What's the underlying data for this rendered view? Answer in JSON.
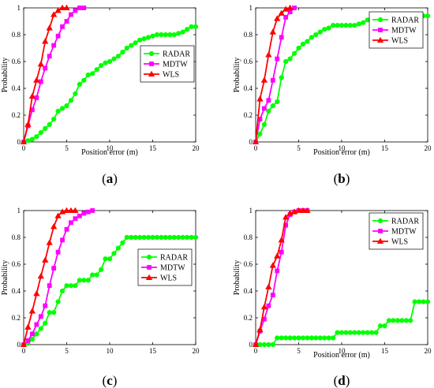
{
  "chart_data": [
    {
      "type": "line",
      "panel_label": "a",
      "xlabel": "Position error (m)",
      "ylabel": "Probability",
      "xlim": [
        0,
        20
      ],
      "ylim": [
        0,
        1
      ],
      "xticks": [
        0,
        5,
        10,
        15,
        20
      ],
      "yticks": [
        0,
        0.2,
        0.4,
        0.6,
        0.8,
        1
      ],
      "legend_position": "right",
      "series": [
        {
          "name": "RADAR",
          "color": "#00ff00",
          "marker": "circle",
          "x": [
            0,
            0.5,
            1,
            1.5,
            2,
            2.5,
            3,
            3.5,
            4,
            4.5,
            5,
            5.5,
            6,
            6.5,
            7,
            7.5,
            8,
            8.5,
            9,
            9.5,
            10,
            10.5,
            11,
            11.5,
            12,
            12.5,
            13,
            13.5,
            14,
            14.5,
            15,
            15.5,
            16,
            16.5,
            17,
            17.5,
            18,
            18.5,
            19,
            19.5,
            20
          ],
          "y": [
            0,
            0.01,
            0.02,
            0.04,
            0.07,
            0.1,
            0.13,
            0.17,
            0.23,
            0.25,
            0.27,
            0.31,
            0.36,
            0.43,
            0.46,
            0.5,
            0.51,
            0.54,
            0.57,
            0.59,
            0.6,
            0.62,
            0.64,
            0.67,
            0.7,
            0.72,
            0.74,
            0.76,
            0.77,
            0.78,
            0.79,
            0.8,
            0.8,
            0.8,
            0.8,
            0.8,
            0.81,
            0.82,
            0.84,
            0.86,
            0.86
          ]
        },
        {
          "name": "MDTW",
          "color": "#ff00ff",
          "marker": "square",
          "x": [
            0,
            0.5,
            1,
            1.5,
            2,
            2.5,
            3,
            3.5,
            4,
            4.5,
            5,
            5.5,
            6,
            6.5,
            7
          ],
          "y": [
            0,
            0.12,
            0.24,
            0.33,
            0.45,
            0.55,
            0.64,
            0.72,
            0.79,
            0.86,
            0.9,
            0.95,
            0.98,
            1.0,
            1.0
          ]
        },
        {
          "name": "WLS",
          "color": "#ff0000",
          "marker": "triangle",
          "x": [
            0,
            0.5,
            1,
            1.5,
            2,
            2.5,
            3,
            3.5,
            4,
            4.5,
            5
          ],
          "y": [
            0,
            0.13,
            0.34,
            0.46,
            0.58,
            0.75,
            0.85,
            0.95,
            0.98,
            1.0,
            1.0
          ]
        }
      ]
    },
    {
      "type": "line",
      "panel_label": "b",
      "xlabel": "Position error (m)",
      "ylabel": "Probability",
      "xlim": [
        0,
        20
      ],
      "ylim": [
        0,
        1
      ],
      "xticks": [
        0,
        5,
        10,
        15,
        20
      ],
      "yticks": [
        0,
        0.2,
        0.4,
        0.6,
        0.8,
        1
      ],
      "legend_position": "top-right",
      "series": [
        {
          "name": "RADAR",
          "color": "#00ff00",
          "marker": "circle",
          "x": [
            0,
            0.5,
            1,
            1.5,
            2,
            2.5,
            3,
            3.5,
            4,
            4.5,
            5,
            5.5,
            6,
            6.5,
            7,
            7.5,
            8,
            8.5,
            9,
            9.5,
            10,
            10.5,
            11,
            11.5,
            12,
            12.5,
            13,
            13.5,
            14,
            14.5,
            15,
            15.5,
            16,
            16.5,
            17,
            17.5,
            18,
            18.5,
            19,
            19.5,
            20
          ],
          "y": [
            0,
            0.06,
            0.13,
            0.23,
            0.27,
            0.3,
            0.48,
            0.6,
            0.62,
            0.66,
            0.7,
            0.73,
            0.75,
            0.78,
            0.8,
            0.82,
            0.84,
            0.85,
            0.87,
            0.87,
            0.87,
            0.87,
            0.87,
            0.87,
            0.88,
            0.89,
            0.91,
            0.93,
            0.93,
            0.93,
            0.93,
            0.93,
            0.93,
            0.94,
            0.94,
            0.94,
            0.94,
            0.94,
            0.94,
            0.94,
            0.94
          ]
        },
        {
          "name": "MDTW",
          "color": "#ff00ff",
          "marker": "square",
          "x": [
            0,
            0.5,
            1,
            1.5,
            2,
            2.5,
            3,
            3.5,
            4,
            4.5
          ],
          "y": [
            0,
            0.17,
            0.25,
            0.31,
            0.46,
            0.62,
            0.78,
            0.93,
            0.97,
            1.0
          ]
        },
        {
          "name": "WLS",
          "color": "#ff0000",
          "marker": "triangle",
          "x": [
            0,
            0.5,
            1,
            1.5,
            2,
            2.5,
            3,
            3.5,
            4
          ],
          "y": [
            0,
            0.32,
            0.46,
            0.65,
            0.82,
            0.92,
            0.96,
            0.99,
            1.0
          ]
        }
      ]
    },
    {
      "type": "line",
      "panel_label": "c",
      "xlabel": "",
      "ylabel": "Probability",
      "xlim": [
        0,
        20
      ],
      "ylim": [
        0,
        1
      ],
      "xticks": [
        0,
        5,
        10,
        15,
        20
      ],
      "yticks": [
        0,
        0.2,
        0.4,
        0.6,
        0.8,
        1
      ],
      "legend_position": "right",
      "series": [
        {
          "name": "RADAR",
          "color": "#00ff00",
          "marker": "circle",
          "x": [
            0,
            0.5,
            1,
            1.5,
            2,
            2.5,
            3,
            3.5,
            4,
            4.5,
            5,
            5.5,
            6,
            6.5,
            7,
            7.5,
            8,
            8.5,
            9,
            9.5,
            10,
            10.5,
            11,
            11.5,
            12,
            12.5,
            13,
            13.5,
            14,
            14.5,
            15,
            15.5,
            16,
            16.5,
            17,
            17.5,
            18,
            18.5,
            19,
            19.5,
            20
          ],
          "y": [
            0,
            0.01,
            0.04,
            0.08,
            0.12,
            0.16,
            0.24,
            0.24,
            0.32,
            0.4,
            0.44,
            0.44,
            0.44,
            0.48,
            0.48,
            0.48,
            0.52,
            0.52,
            0.56,
            0.64,
            0.64,
            0.68,
            0.72,
            0.76,
            0.8,
            0.8,
            0.8,
            0.8,
            0.8,
            0.8,
            0.8,
            0.8,
            0.8,
            0.8,
            0.8,
            0.8,
            0.8,
            0.8,
            0.8,
            0.8,
            0.8
          ]
        },
        {
          "name": "MDTW",
          "color": "#ff00ff",
          "marker": "square",
          "x": [
            0,
            0.5,
            1,
            1.5,
            2,
            2.5,
            3,
            3.5,
            4,
            4.5,
            5,
            5.5,
            6,
            6.5,
            7,
            7.5,
            8
          ],
          "y": [
            0,
            0.03,
            0.08,
            0.15,
            0.21,
            0.29,
            0.44,
            0.57,
            0.69,
            0.78,
            0.86,
            0.91,
            0.94,
            0.96,
            0.98,
            0.99,
            1.0
          ]
        },
        {
          "name": "WLS",
          "color": "#ff0000",
          "marker": "triangle",
          "x": [
            0,
            0.5,
            1,
            1.5,
            2,
            2.5,
            3,
            3.5,
            4,
            4.5,
            5,
            5.5,
            6
          ],
          "y": [
            0,
            0.13,
            0.25,
            0.38,
            0.51,
            0.63,
            0.76,
            0.88,
            0.96,
            0.99,
            1.0,
            1.0,
            1.0
          ]
        }
      ]
    },
    {
      "type": "line",
      "panel_label": "d",
      "xlabel": "Position error (m)",
      "ylabel": "Probability",
      "xlim": [
        0,
        20
      ],
      "ylim": [
        0,
        1
      ],
      "xticks": [
        0,
        5,
        10,
        15,
        20
      ],
      "yticks": [
        0,
        0.2,
        0.4,
        0.6,
        0.8,
        1
      ],
      "legend_position": "top-right",
      "series": [
        {
          "name": "RADAR",
          "color": "#00ff00",
          "marker": "circle",
          "x": [
            0,
            0.5,
            1,
            1.5,
            2,
            2.5,
            3,
            3.5,
            4,
            4.5,
            5,
            5.5,
            6,
            6.5,
            7,
            7.5,
            8,
            8.5,
            9,
            9.5,
            10,
            10.5,
            11,
            11.5,
            12,
            12.5,
            13,
            13.5,
            14,
            14.5,
            15,
            15.5,
            16,
            16.5,
            17,
            17.5,
            18,
            18.5,
            19,
            19.5,
            20
          ],
          "y": [
            0,
            0,
            0,
            0,
            0,
            0.05,
            0.05,
            0.05,
            0.05,
            0.05,
            0.05,
            0.05,
            0.05,
            0.05,
            0.05,
            0.05,
            0.05,
            0.05,
            0.05,
            0.09,
            0.09,
            0.09,
            0.09,
            0.09,
            0.09,
            0.09,
            0.09,
            0.09,
            0.09,
            0.14,
            0.14,
            0.18,
            0.18,
            0.18,
            0.18,
            0.18,
            0.18,
            0.32,
            0.32,
            0.32,
            0.32
          ]
        },
        {
          "name": "MDTW",
          "color": "#ff00ff",
          "marker": "square",
          "x": [
            0,
            0.5,
            1,
            1.5,
            2,
            2.5,
            3,
            3.5,
            4,
            4.5,
            5,
            5.5,
            6
          ],
          "y": [
            0,
            0.1,
            0.19,
            0.29,
            0.37,
            0.55,
            0.69,
            0.89,
            0.97,
            0.99,
            1.0,
            1.0,
            1.0
          ]
        },
        {
          "name": "WLS",
          "color": "#ff0000",
          "marker": "triangle",
          "x": [
            0,
            0.5,
            1,
            1.5,
            2,
            2.5,
            3,
            3.5,
            4,
            4.5,
            5,
            5.5,
            6
          ],
          "y": [
            0,
            0.11,
            0.28,
            0.43,
            0.59,
            0.66,
            0.78,
            0.95,
            0.98,
            0.99,
            1.0,
            1.0,
            1.0
          ]
        }
      ]
    }
  ]
}
